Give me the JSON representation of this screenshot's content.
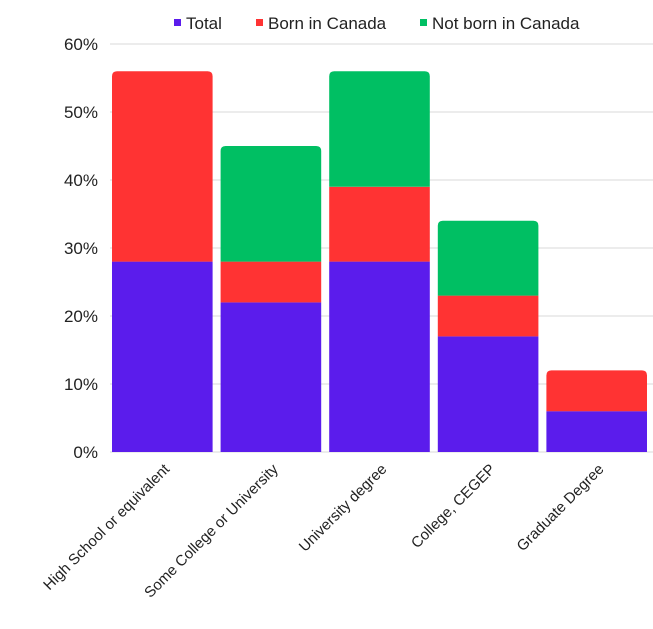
{
  "chart_data": {
    "type": "bar",
    "stacked": true,
    "categories": [
      "High School or equivalent",
      "Some College or University",
      "University degree",
      "College, CEGEP",
      "Graduate Degree"
    ],
    "series": [
      {
        "name": "Total",
        "color": "#5b1cec",
        "values": [
          28,
          22,
          28,
          17,
          6
        ]
      },
      {
        "name": "Born in Canada",
        "color": "#ff3333",
        "values": [
          28,
          6,
          11,
          6,
          6
        ]
      },
      {
        "name": "Not born in Canada",
        "color": "#00bf63",
        "values": [
          0,
          17,
          17,
          11,
          0
        ]
      }
    ],
    "ylim": [
      0,
      60
    ],
    "yticks": [
      "0%",
      "10%",
      "20%",
      "30%",
      "40%",
      "50%",
      "60%"
    ],
    "grid": true,
    "legend_position": "top"
  }
}
